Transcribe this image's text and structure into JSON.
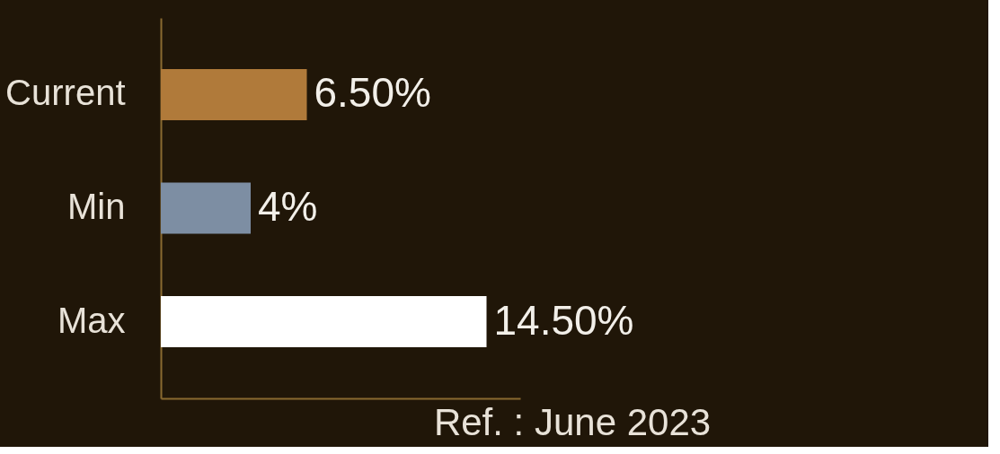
{
  "chart_data": {
    "type": "bar",
    "orientation": "horizontal",
    "categories": [
      "Current",
      "Min",
      "Max"
    ],
    "values": [
      6.5,
      4,
      14.5
    ],
    "colors": [
      "#b07a3a",
      "#7d8ea3",
      "#ffffff"
    ],
    "value_labels": [
      "6.50%",
      "4%",
      "14.50%"
    ],
    "tick_labels": "y",
    "grid": false,
    "annotations": [
      "Ref. : June 2023"
    ]
  }
}
